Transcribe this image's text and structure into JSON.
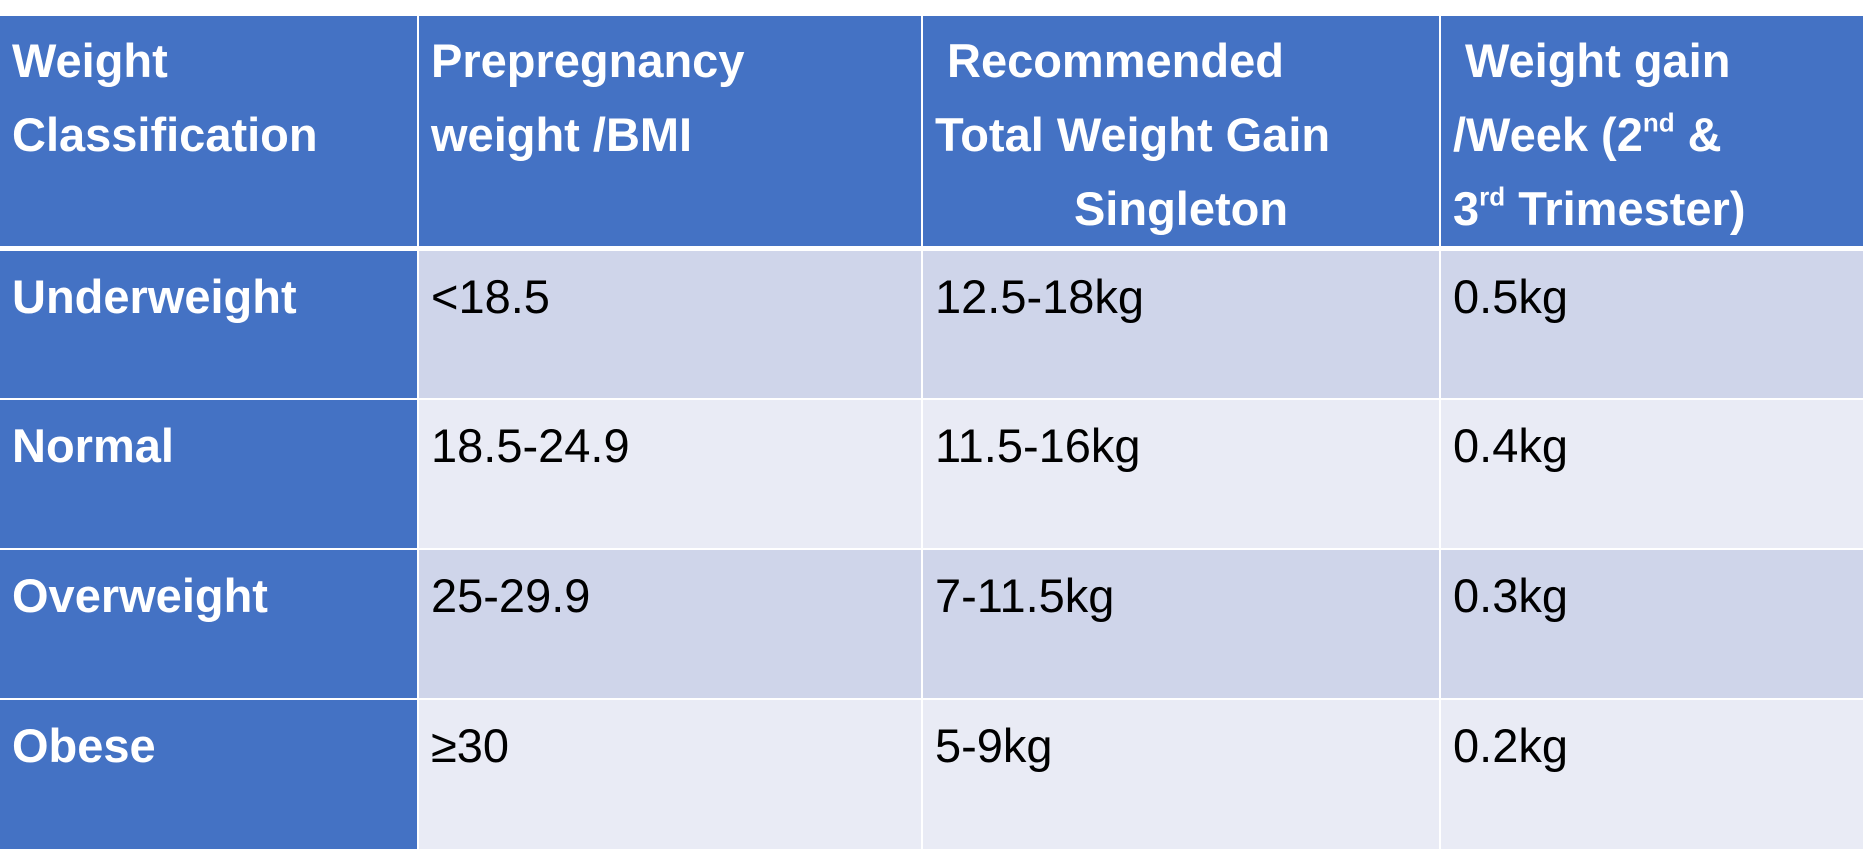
{
  "headers": {
    "col1": {
      "line1": "Weight",
      "line2": "Classification"
    },
    "col2": {
      "line1": "Prepregnancy",
      "line2": "weight /BMI"
    },
    "col3": {
      "line1": "Recommended",
      "line2": "Total Weight Gain",
      "line3": "Singleton"
    },
    "col4": {
      "line1": "Weight gain",
      "line2_pre": "/Week (2",
      "line2_sup": "nd",
      "line2_post": " &",
      "line3_pre": "3",
      "line3_sup": "rd",
      "line3_post": " Trimester)"
    }
  },
  "rows": [
    {
      "classification": "Underweight",
      "bmi": "<18.5",
      "total_gain": "12.5-18kg",
      "weekly_gain": "0.5kg"
    },
    {
      "classification": "Normal",
      "bmi": "18.5-24.9",
      "total_gain": "11.5-16kg",
      "weekly_gain": "0.4kg"
    },
    {
      "classification": "Overweight",
      "bmi": "25-29.9",
      "total_gain": "7-11.5kg",
      "weekly_gain": "0.3kg"
    },
    {
      "classification": "Obese",
      "bmi": "≥30",
      "total_gain": "5-9kg",
      "weekly_gain": "0.2kg"
    }
  ],
  "colors": {
    "header_bg": "#4472c4",
    "row_band_dark": "#cfd5ea",
    "row_band_light": "#e9ebf5"
  }
}
